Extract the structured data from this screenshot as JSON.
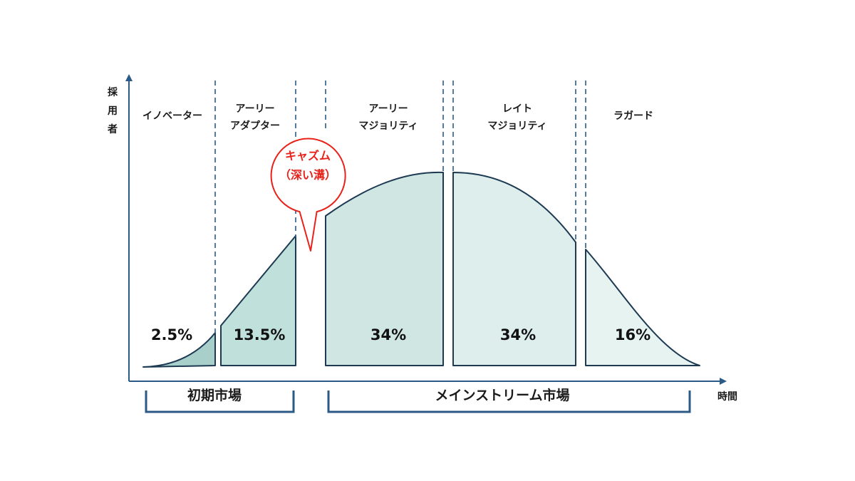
{
  "axes": {
    "y_label": "採用者",
    "x_label": "時間"
  },
  "segments": [
    {
      "line1": "イノベーター",
      "line2": "",
      "share": "2.5%",
      "fill": "#a9cfcb"
    },
    {
      "line1": "アーリー",
      "line2": "アダプター",
      "share": "13.5%",
      "fill": "#bfe0db"
    },
    {
      "line1": "アーリー",
      "line2": "マジョリティ",
      "share": "34%",
      "fill": "#d0e6e3"
    },
    {
      "line1": "レイト",
      "line2": "マジョリティ",
      "share": "34%",
      "fill": "#ddeeed"
    },
    {
      "line1": "ラガード",
      "line2": "",
      "share": "16%",
      "fill": "#e6f3f1"
    }
  ],
  "chasm": {
    "line1": "キャズム",
    "line2": "（深い溝）",
    "color": "#e8221a"
  },
  "markets": {
    "early": "初期市場",
    "mainstream": "メインストリーム市場"
  },
  "colors": {
    "outline": "#1d3a52",
    "axis": "#2b5a86",
    "divider": "#2b5a86",
    "bracket": "#2b5a86"
  }
}
